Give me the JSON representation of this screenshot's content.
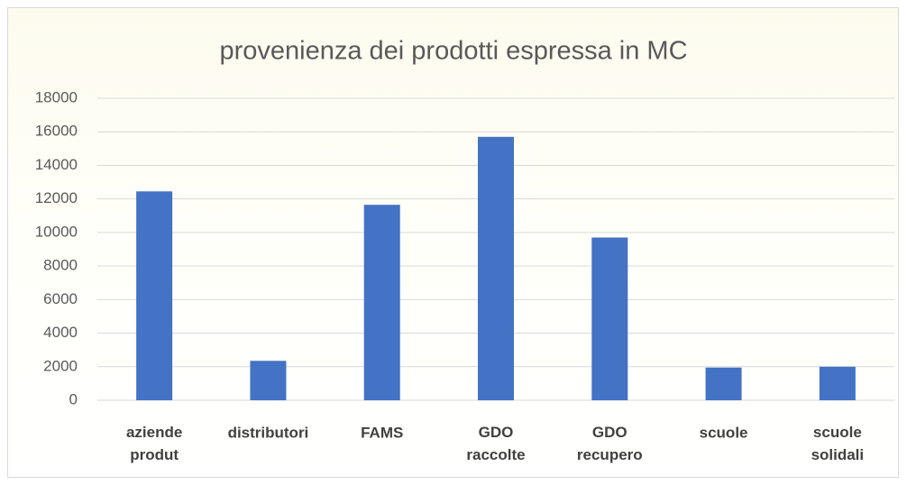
{
  "chart_data": {
    "type": "bar",
    "title": "provenienza dei prodotti espressa in MC",
    "categories": [
      "aziende produt",
      "distributori",
      "FAMS",
      "GDO raccolte",
      "GDO recupero",
      "scuole",
      "scuole solidali"
    ],
    "values": [
      12450,
      2350,
      11650,
      15700,
      9700,
      1950,
      2000
    ],
    "color": "#4472c4",
    "ylim": [
      0,
      18000
    ],
    "yticks": [
      0,
      2000,
      4000,
      6000,
      8000,
      10000,
      12000,
      14000,
      16000,
      18000
    ],
    "grid": true
  }
}
